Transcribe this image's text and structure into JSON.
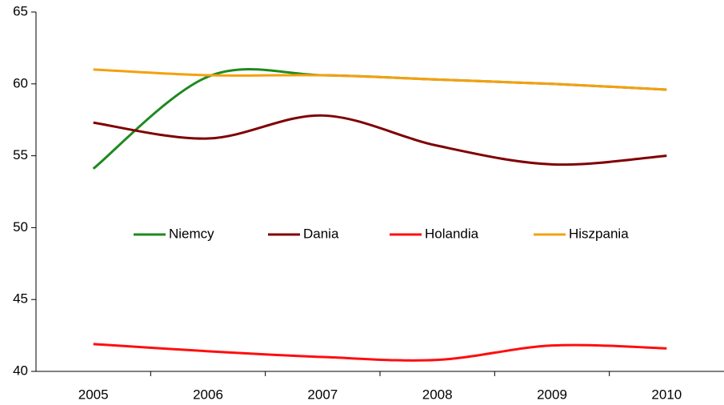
{
  "chart_data": {
    "type": "line",
    "categories": [
      "2005",
      "2006",
      "2007",
      "2008",
      "2009",
      "2010"
    ],
    "series": [
      {
        "name": "Niemcy",
        "color": "#1e8a1e",
        "values": [
          54.1,
          60.5,
          60.6,
          60.3,
          60.0,
          59.6
        ]
      },
      {
        "name": "Dania",
        "color": "#7f0000",
        "values": [
          57.3,
          56.2,
          57.8,
          55.7,
          54.4,
          55.0
        ]
      },
      {
        "name": "Holandia",
        "color": "#ff0d0d",
        "values": [
          41.9,
          41.4,
          41.0,
          40.8,
          41.8,
          41.6
        ]
      },
      {
        "name": "Hiszpania",
        "color": "#f5a00f",
        "values": [
          61.0,
          60.6,
          60.6,
          60.3,
          60.0,
          59.6
        ]
      }
    ],
    "ylim": [
      40,
      65
    ],
    "yticks": [
      40,
      45,
      50,
      55,
      60,
      65
    ],
    "smooth": true,
    "legend": "center"
  }
}
